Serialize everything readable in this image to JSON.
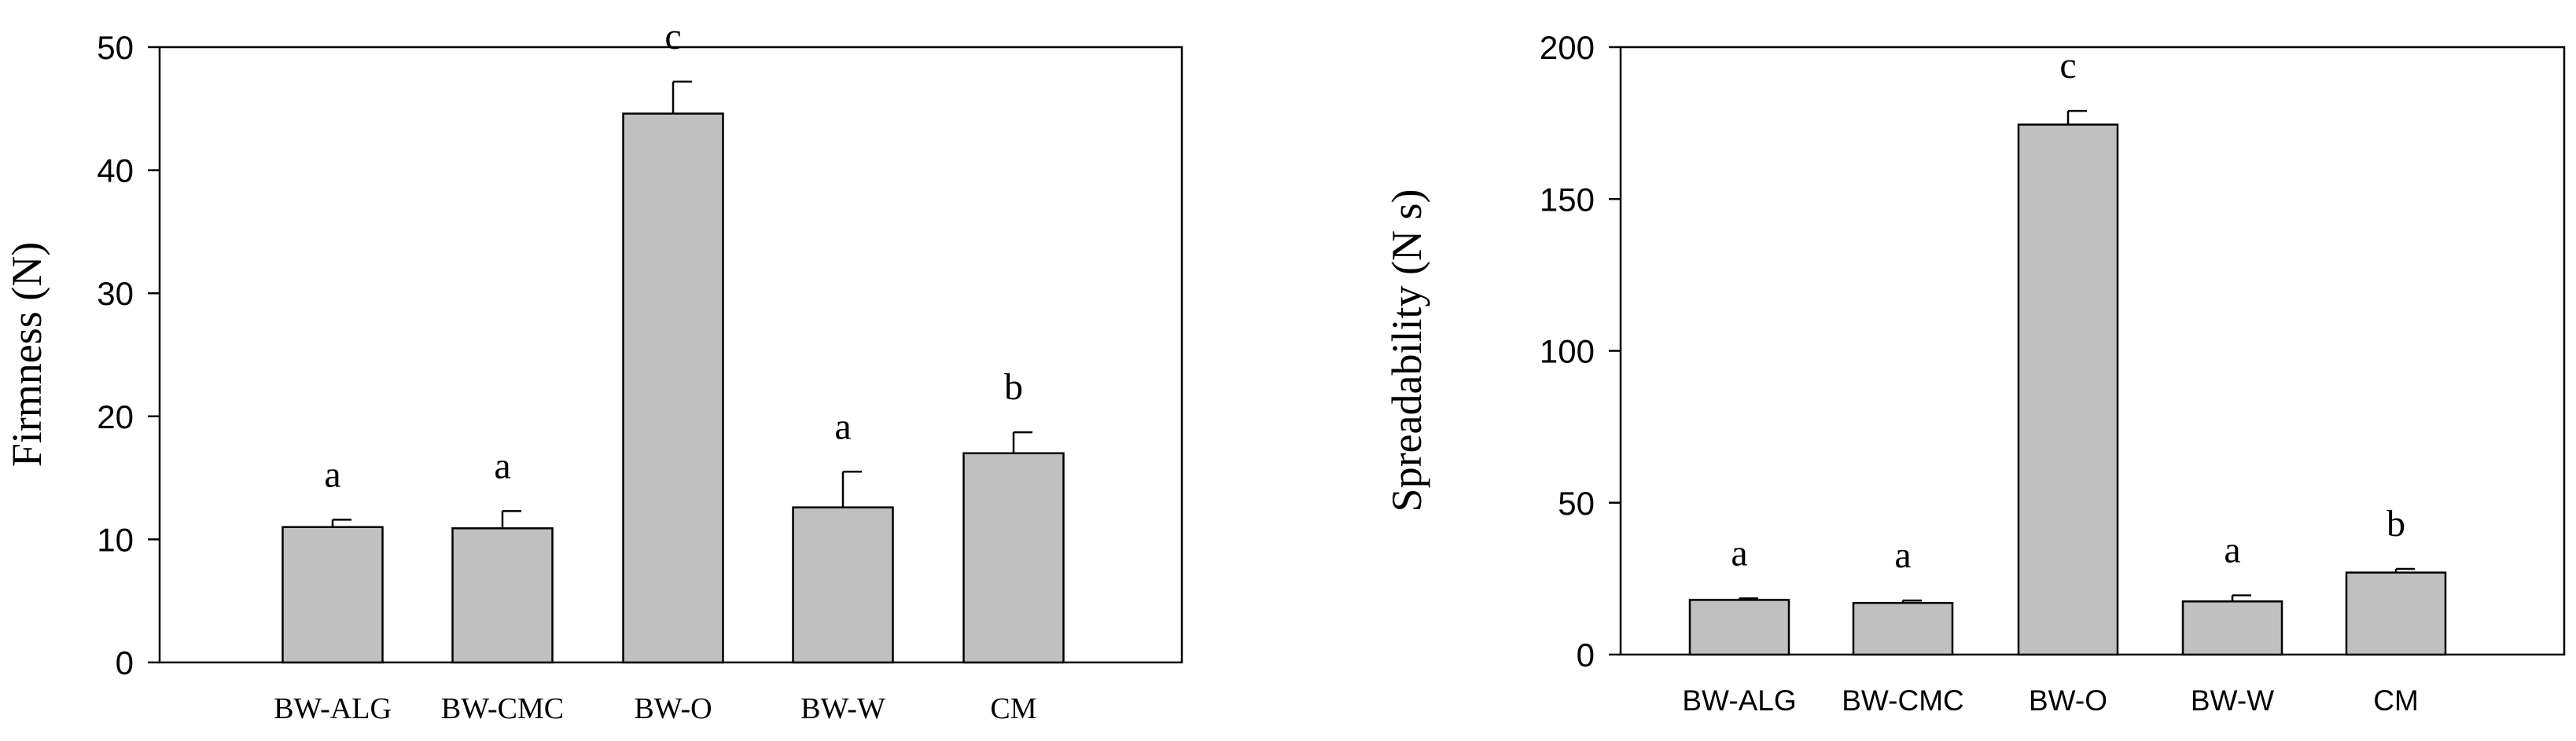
{
  "chart_data": [
    {
      "type": "bar",
      "categories": [
        "BW-ALG",
        "BW-CMC",
        "BW-O",
        "BW-W",
        "CM"
      ],
      "values": [
        11.0,
        10.9,
        44.6,
        12.6,
        17.0
      ],
      "errors": [
        0.6,
        1.4,
        2.6,
        2.9,
        1.7
      ],
      "significance": [
        "a",
        "a",
        "c",
        "a",
        "b"
      ],
      "ylabel": "Firmness (N)",
      "xlabel": "",
      "ylim": [
        0,
        50
      ],
      "yticks": [
        0,
        10,
        20,
        30,
        40,
        50
      ],
      "bar_color": "#c0c0c0",
      "grid": false,
      "legend": "none"
    },
    {
      "type": "bar",
      "categories": [
        "BW-ALG",
        "BW-CMC",
        "BW-O",
        "BW-W",
        "CM"
      ],
      "values": [
        18.0,
        17.0,
        174.5,
        17.5,
        27.0
      ],
      "errors": [
        0.5,
        0.8,
        4.5,
        2.0,
        1.2
      ],
      "significance": [
        "a",
        "a",
        "c",
        "a",
        "b"
      ],
      "ylabel": "Spreadability (N s)",
      "xlabel": "",
      "ylim": [
        0,
        200
      ],
      "yticks": [
        0,
        50,
        100,
        150,
        200
      ],
      "bar_color": "#c0c0c0",
      "grid": false,
      "legend": "none"
    }
  ]
}
